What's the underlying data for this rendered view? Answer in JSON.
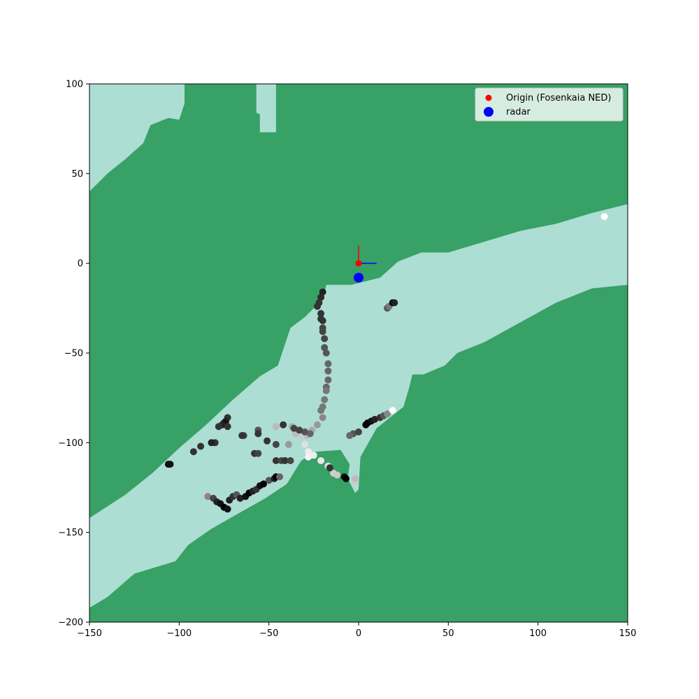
{
  "chart_data": {
    "type": "scatter",
    "title": "",
    "xlabel": "",
    "ylabel": "",
    "xlim": [
      -150,
      150
    ],
    "ylim": [
      -200,
      100
    ],
    "xticks": [
      -150,
      -100,
      -50,
      0,
      50,
      100,
      150
    ],
    "yticks": [
      100,
      50,
      0,
      -50,
      -100,
      -150,
      -200
    ],
    "xtick_labels": [
      "−150",
      "−100",
      "−50",
      "0",
      "50",
      "100",
      "150"
    ],
    "ytick_labels": [
      "100",
      "50",
      "0",
      "−50",
      "−100",
      "−150",
      "−200"
    ],
    "grid": false,
    "legend_position": "top-right",
    "colors": {
      "land": "#38a165",
      "water": "#acded4",
      "origin": "#ff0000",
      "radar": "#0000ff",
      "axis_north": "#ff0000",
      "axis_east": "#0000ff"
    },
    "water_polygons": [
      {
        "name": "main-channel",
        "points": [
          [
            -150,
            -192
          ],
          [
            -140,
            -186
          ],
          [
            -125,
            -173
          ],
          [
            -102,
            -166
          ],
          [
            -95,
            -157
          ],
          [
            -82,
            -148
          ],
          [
            -68,
            -140
          ],
          [
            -52,
            -131
          ],
          [
            -40,
            -123
          ],
          [
            -32,
            -110
          ],
          [
            -24,
            -105
          ],
          [
            -10,
            -104
          ],
          [
            -5,
            -112
          ],
          [
            -6,
            -120
          ],
          [
            -2,
            -128
          ],
          [
            0,
            -126
          ],
          [
            1,
            -108
          ],
          [
            10,
            -92
          ],
          [
            25,
            -80
          ],
          [
            28,
            -70
          ],
          [
            30,
            -62
          ],
          [
            36,
            -62
          ],
          [
            48,
            -57
          ],
          [
            55,
            -50
          ],
          [
            70,
            -44
          ],
          [
            90,
            -33
          ],
          [
            110,
            -22
          ],
          [
            130,
            -14
          ],
          [
            150,
            -12
          ],
          [
            150,
            33
          ],
          [
            130,
            28
          ],
          [
            110,
            22
          ],
          [
            90,
            18
          ],
          [
            70,
            12
          ],
          [
            50,
            6
          ],
          [
            35,
            6
          ],
          [
            22,
            1
          ],
          [
            12,
            -8
          ],
          [
            -4,
            -12
          ],
          [
            -18,
            -12
          ],
          [
            -20,
            -20
          ],
          [
            -30,
            -30
          ],
          [
            -38,
            -36
          ],
          [
            -45,
            -57
          ],
          [
            -55,
            -63
          ],
          [
            -70,
            -76
          ],
          [
            -85,
            -90
          ],
          [
            -100,
            -103
          ],
          [
            -115,
            -117
          ],
          [
            -130,
            -129
          ],
          [
            -150,
            -142
          ]
        ]
      },
      {
        "name": "north-west-water",
        "points": [
          [
            -150,
            100
          ],
          [
            -97,
            100
          ],
          [
            -97,
            89
          ],
          [
            -100,
            80
          ],
          [
            -106,
            81
          ],
          [
            -116,
            77
          ],
          [
            -120,
            67
          ],
          [
            -130,
            58
          ],
          [
            -140,
            50
          ],
          [
            -150,
            40
          ]
        ]
      },
      {
        "name": "north-inlet",
        "points": [
          [
            -57,
            100
          ],
          [
            -46,
            100
          ],
          [
            -46,
            73
          ],
          [
            -55,
            73
          ],
          [
            -55,
            83
          ],
          [
            -57,
            84
          ]
        ]
      }
    ],
    "track_points": [
      {
        "x": -20,
        "y": -16,
        "shade": "#222222"
      },
      {
        "x": -21,
        "y": -19,
        "shade": "#2a2a2a"
      },
      {
        "x": -22,
        "y": -22,
        "shade": "#333333"
      },
      {
        "x": -23,
        "y": -24,
        "shade": "#333333"
      },
      {
        "x": -21,
        "y": -28,
        "shade": "#333333"
      },
      {
        "x": -21,
        "y": -31,
        "shade": "#333333"
      },
      {
        "x": -20,
        "y": -32,
        "shade": "#333333"
      },
      {
        "x": -20,
        "y": -36,
        "shade": "#444444"
      },
      {
        "x": -20,
        "y": -38,
        "shade": "#444444"
      },
      {
        "x": -19,
        "y": -42,
        "shade": "#444444"
      },
      {
        "x": -19,
        "y": -47,
        "shade": "#555555"
      },
      {
        "x": -18,
        "y": -50,
        "shade": "#555555"
      },
      {
        "x": -17,
        "y": -56,
        "shade": "#666666"
      },
      {
        "x": -17,
        "y": -60,
        "shade": "#666666"
      },
      {
        "x": -17,
        "y": -65,
        "shade": "#666666"
      },
      {
        "x": -18,
        "y": -69,
        "shade": "#666666"
      },
      {
        "x": -18,
        "y": -71,
        "shade": "#777777"
      },
      {
        "x": -19,
        "y": -76,
        "shade": "#777777"
      },
      {
        "x": -20,
        "y": -80,
        "shade": "#777777"
      },
      {
        "x": -21,
        "y": -82,
        "shade": "#777777"
      },
      {
        "x": -20,
        "y": -86,
        "shade": "#888888"
      },
      {
        "x": -23,
        "y": -90,
        "shade": "#999999"
      },
      {
        "x": -26,
        "y": -93,
        "shade": "#aaaaaa"
      },
      {
        "x": -29,
        "y": -96,
        "shade": "#bbbbbb"
      },
      {
        "x": -32,
        "y": -96,
        "shade": "#cccccc"
      },
      {
        "x": -35,
        "y": -95,
        "shade": "#bbbbbb"
      },
      {
        "x": -37,
        "y": -91,
        "shade": "#aaaaaa"
      },
      {
        "x": -46,
        "y": -91,
        "shade": "#bbbbbb"
      },
      {
        "x": -30,
        "y": -101,
        "shade": "#e0e0e0"
      },
      {
        "x": -28,
        "y": -105,
        "shade": "#eeeeee"
      },
      {
        "x": -28,
        "y": -108,
        "shade": "#f4f4f4"
      },
      {
        "x": -25,
        "y": -107,
        "shade": "#eeeeee"
      },
      {
        "x": -21,
        "y": -110,
        "shade": "#e8e8e8"
      },
      {
        "x": -17,
        "y": -113,
        "shade": "#dddddd"
      },
      {
        "x": -14,
        "y": -117,
        "shade": "#d0d0d0"
      },
      {
        "x": -12,
        "y": -118,
        "shade": "#cccccc"
      },
      {
        "x": -2,
        "y": -122,
        "shade": "#cccccc"
      },
      {
        "x": -2,
        "y": -120,
        "shade": "#bbbbbb"
      },
      {
        "x": -16,
        "y": -114,
        "shade": "#333333"
      },
      {
        "x": -8,
        "y": -119,
        "shade": "#111111"
      },
      {
        "x": -7,
        "y": -120,
        "shade": "#000000"
      },
      {
        "x": -3,
        "y": -95,
        "shade": "#555555"
      },
      {
        "x": -5,
        "y": -96,
        "shade": "#666666"
      },
      {
        "x": 0,
        "y": -94,
        "shade": "#444444"
      },
      {
        "x": 4,
        "y": -90,
        "shade": "#000000"
      },
      {
        "x": 5,
        "y": -89,
        "shade": "#000000"
      },
      {
        "x": 7,
        "y": -88,
        "shade": "#111111"
      },
      {
        "x": 9,
        "y": -87,
        "shade": "#222222"
      },
      {
        "x": 12,
        "y": -86,
        "shade": "#333333"
      },
      {
        "x": 14,
        "y": -85,
        "shade": "#555555"
      },
      {
        "x": 16,
        "y": -84,
        "shade": "#888888"
      },
      {
        "x": 19,
        "y": -82,
        "shade": "#ffffff"
      },
      {
        "x": 16,
        "y": -25,
        "shade": "#555555"
      },
      {
        "x": 17,
        "y": -24,
        "shade": "#777777"
      },
      {
        "x": 19,
        "y": -22,
        "shade": "#000000"
      },
      {
        "x": 20,
        "y": -22,
        "shade": "#222222"
      },
      {
        "x": 137,
        "y": 26,
        "shade": "#ffffff"
      },
      {
        "x": -27,
        "y": -95,
        "shade": "#666666"
      },
      {
        "x": -30,
        "y": -94,
        "shade": "#555555"
      },
      {
        "x": -33,
        "y": -93,
        "shade": "#444444"
      },
      {
        "x": -36,
        "y": -92,
        "shade": "#444444"
      },
      {
        "x": -42,
        "y": -90,
        "shade": "#333333"
      },
      {
        "x": -51,
        "y": -99,
        "shade": "#333333"
      },
      {
        "x": -46,
        "y": -101,
        "shade": "#444444"
      },
      {
        "x": -39,
        "y": -101,
        "shade": "#999999"
      },
      {
        "x": -56,
        "y": -93,
        "shade": "#555555"
      },
      {
        "x": -56,
        "y": -95,
        "shade": "#333333"
      },
      {
        "x": -64,
        "y": -96,
        "shade": "#444444"
      },
      {
        "x": -65,
        "y": -96,
        "shade": "#333333"
      },
      {
        "x": -58,
        "y": -106,
        "shade": "#333333"
      },
      {
        "x": -56,
        "y": -106,
        "shade": "#444444"
      },
      {
        "x": -46,
        "y": -110,
        "shade": "#333333"
      },
      {
        "x": -43,
        "y": -110,
        "shade": "#444444"
      },
      {
        "x": -41,
        "y": -110,
        "shade": "#333333"
      },
      {
        "x": -38,
        "y": -110,
        "shade": "#444444"
      },
      {
        "x": -73,
        "y": -86,
        "shade": "#333333"
      },
      {
        "x": -74,
        "y": -88,
        "shade": "#222222"
      },
      {
        "x": -75,
        "y": -89,
        "shade": "#111111"
      },
      {
        "x": -76,
        "y": -90,
        "shade": "#222222"
      },
      {
        "x": -78,
        "y": -91,
        "shade": "#333333"
      },
      {
        "x": -73,
        "y": -91,
        "shade": "#333333"
      },
      {
        "x": -80,
        "y": -100,
        "shade": "#333333"
      },
      {
        "x": -82,
        "y": -100,
        "shade": "#222222"
      },
      {
        "x": -88,
        "y": -102,
        "shade": "#333333"
      },
      {
        "x": -92,
        "y": -105,
        "shade": "#333333"
      },
      {
        "x": -106,
        "y": -112,
        "shade": "#000000"
      },
      {
        "x": -105,
        "y": -112,
        "shade": "#111111"
      },
      {
        "x": -85,
        "y": -129,
        "shade": "#cccccc"
      },
      {
        "x": -84,
        "y": -130,
        "shade": "#888888"
      },
      {
        "x": -81,
        "y": -131,
        "shade": "#444444"
      },
      {
        "x": -79,
        "y": -133,
        "shade": "#222222"
      },
      {
        "x": -77,
        "y": -134,
        "shade": "#111111"
      },
      {
        "x": -75,
        "y": -136,
        "shade": "#000000"
      },
      {
        "x": -73,
        "y": -137,
        "shade": "#111111"
      },
      {
        "x": -72,
        "y": -132,
        "shade": "#222222"
      },
      {
        "x": -70,
        "y": -130,
        "shade": "#333333"
      },
      {
        "x": -68,
        "y": -129,
        "shade": "#555555"
      },
      {
        "x": -66,
        "y": -131,
        "shade": "#222222"
      },
      {
        "x": -63,
        "y": -130,
        "shade": "#111111"
      },
      {
        "x": -61,
        "y": -128,
        "shade": "#000000"
      },
      {
        "x": -59,
        "y": -127,
        "shade": "#222222"
      },
      {
        "x": -57,
        "y": -126,
        "shade": "#333333"
      },
      {
        "x": -55,
        "y": -124,
        "shade": "#111111"
      },
      {
        "x": -53,
        "y": -123,
        "shade": "#000000"
      },
      {
        "x": -50,
        "y": -121,
        "shade": "#555555"
      },
      {
        "x": -47,
        "y": -120,
        "shade": "#222222"
      },
      {
        "x": -46,
        "y": -119,
        "shade": "#000000"
      },
      {
        "x": -44,
        "y": -119,
        "shade": "#666666"
      }
    ],
    "legend": [
      {
        "label": "Origin (Fosenkaia NED)",
        "color": "#ff0000",
        "marker": "small-dot"
      },
      {
        "label": "radar",
        "color": "#0000ff",
        "marker": "large-dot"
      }
    ],
    "origin_point": {
      "x": 0,
      "y": 0
    },
    "radar_point": {
      "x": 0,
      "y": -8
    },
    "north_axis": {
      "from": [
        0,
        0
      ],
      "to": [
        0,
        10
      ]
    },
    "east_axis": {
      "from": [
        0,
        0
      ],
      "to": [
        10,
        0
      ]
    }
  }
}
